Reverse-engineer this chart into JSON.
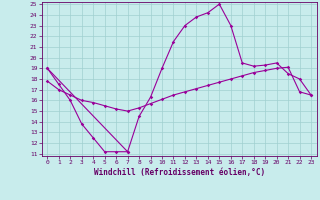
{
  "title": "",
  "xlabel": "Windchill (Refroidissement éolien,°C)",
  "background_color": "#c8ecec",
  "grid_color": "#a0d0d0",
  "line_color": "#990099",
  "ylim": [
    11,
    25
  ],
  "xlim": [
    -0.5,
    23.5
  ],
  "yticks": [
    11,
    12,
    13,
    14,
    15,
    16,
    17,
    18,
    19,
    20,
    21,
    22,
    23,
    24,
    25
  ],
  "xticks": [
    0,
    1,
    2,
    3,
    4,
    5,
    6,
    7,
    8,
    9,
    10,
    11,
    12,
    13,
    14,
    15,
    16,
    17,
    18,
    19,
    20,
    21,
    22,
    23
  ],
  "line1_x": [
    0,
    1,
    2,
    3,
    4,
    5,
    6,
    7
  ],
  "line1_y": [
    19.0,
    17.5,
    16.0,
    13.8,
    12.5,
    11.2,
    11.2,
    11.2
  ],
  "line2_x": [
    0,
    7,
    8,
    9,
    10,
    11,
    12,
    13,
    14,
    15,
    16,
    17,
    18,
    19,
    20,
    21,
    22,
    23
  ],
  "line2_y": [
    19.0,
    11.2,
    14.5,
    16.3,
    19.0,
    21.5,
    23.0,
    23.8,
    24.2,
    25.0,
    23.0,
    19.5,
    19.2,
    19.3,
    19.5,
    18.5,
    18.0,
    16.5
  ],
  "line3_x": [
    0,
    1,
    2,
    3,
    4,
    5,
    6,
    7,
    8,
    9,
    10,
    11,
    12,
    13,
    14,
    15,
    16,
    17,
    18,
    19,
    20,
    21,
    22,
    23
  ],
  "line3_y": [
    17.8,
    17.0,
    16.5,
    16.0,
    15.8,
    15.5,
    15.2,
    15.0,
    15.3,
    15.7,
    16.1,
    16.5,
    16.8,
    17.1,
    17.4,
    17.7,
    18.0,
    18.3,
    18.6,
    18.8,
    19.0,
    19.1,
    16.8,
    16.5
  ]
}
